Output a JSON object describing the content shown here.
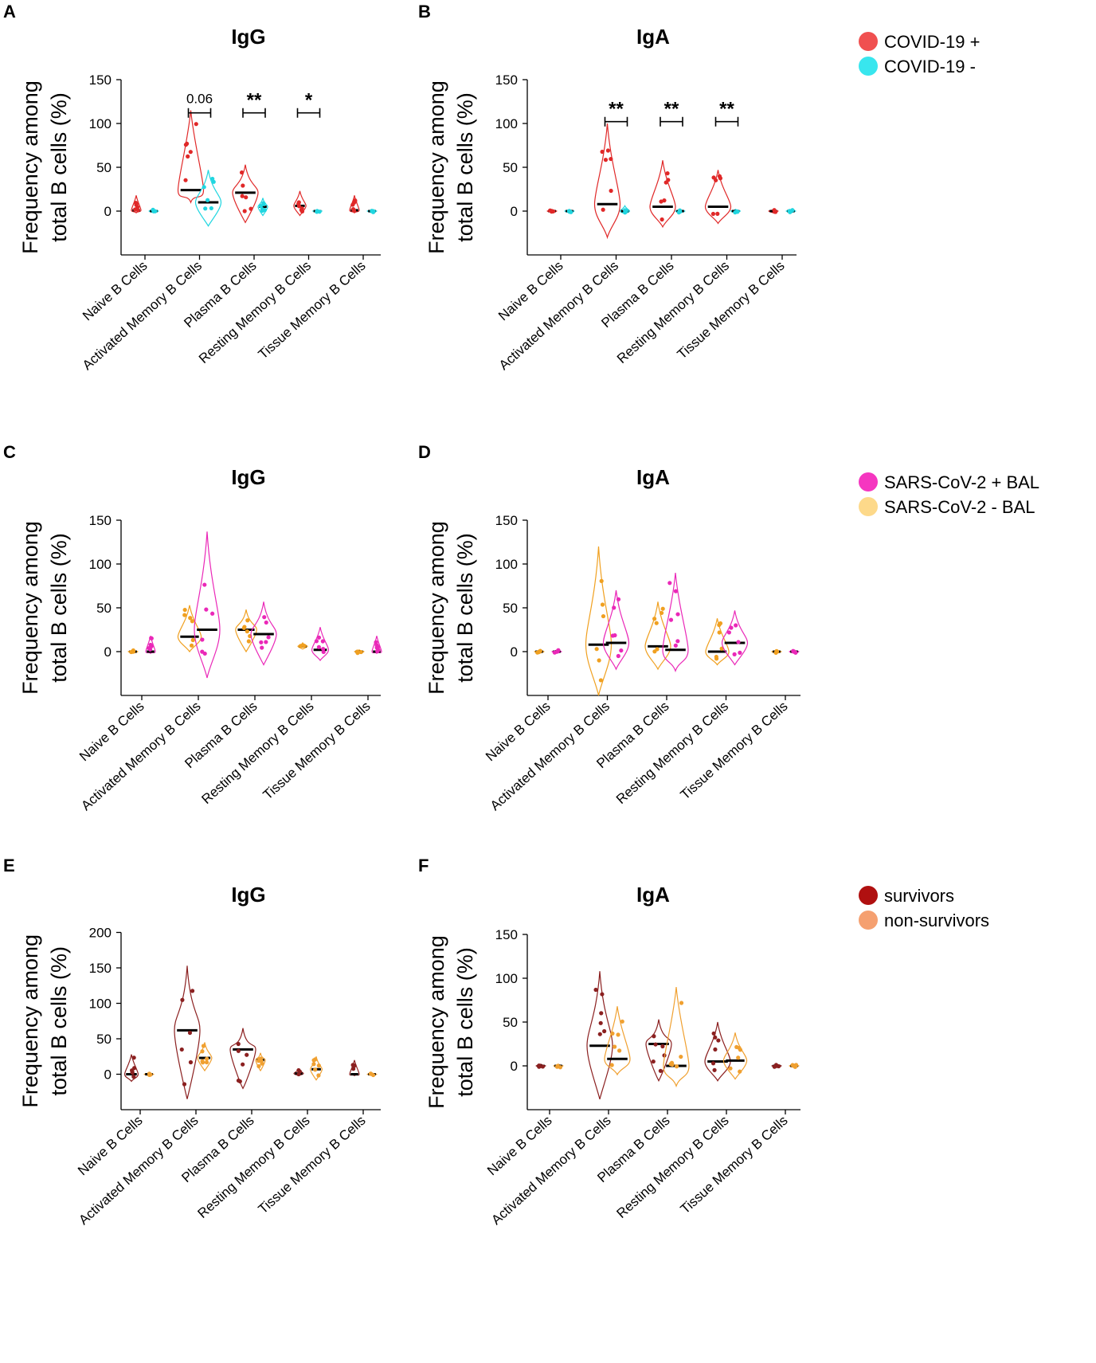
{
  "figure": {
    "categories": [
      "Naive B Cells",
      "Activated Memory B Cells",
      "Plasma B Cells",
      "Resting Memory B Cells",
      "Tissue  Memory B Cells"
    ],
    "ylabel_line1": "Frequency among",
    "ylabel_line2": "total B cells (%)"
  },
  "legends": [
    {
      "row": 0,
      "items": [
        {
          "label": "COVID-19 +",
          "color": "#f05050"
        },
        {
          "label": "COVID-19 -",
          "color": "#38e6ee"
        }
      ]
    },
    {
      "row": 1,
      "items": [
        {
          "label": "SARS-CoV-2 + BAL",
          "color": "#f536c0"
        },
        {
          "label": "SARS-CoV-2 - BAL",
          "color": "#fdd98a"
        }
      ]
    },
    {
      "row": 2,
      "items": [
        {
          "label": "survivors",
          "color": "#b01010"
        },
        {
          "label": "non-survivors",
          "color": "#f5a070"
        }
      ]
    }
  ],
  "chart_data": [
    {
      "panel": "A",
      "title": "IgG",
      "type": "violin",
      "ylim": [
        -50,
        150
      ],
      "yticks": [
        0,
        50,
        100,
        150
      ],
      "categories": [
        "Naive B Cells",
        "Activated Memory B Cells",
        "Plasma B Cells",
        "Resting Memory B Cells",
        "Tissue  Memory B Cells"
      ],
      "series": [
        {
          "name": "COVID-19 +",
          "color": "#e02828",
          "medians": [
            1,
            24,
            21,
            6,
            1
          ],
          "ranges": [
            [
              -2,
              18
            ],
            [
              10,
              115
            ],
            [
              -13,
              53
            ],
            [
              -5,
              23
            ],
            [
              -2,
              18
            ]
          ]
        },
        {
          "name": "COVID-19 -",
          "color": "#20d6e0",
          "medians": [
            0,
            10,
            5,
            0,
            0
          ],
          "ranges": [
            [
              -2,
              2
            ],
            [
              -17,
              47
            ],
            [
              -5,
              15
            ],
            [
              -1,
              1
            ],
            [
              -2,
              2
            ]
          ]
        }
      ],
      "annotations": [
        {
          "text": "0.06",
          "category": 1,
          "y": 143
        },
        {
          "text": "**",
          "category": 2,
          "y": 143
        },
        {
          "text": "*",
          "category": 3,
          "y": 143
        }
      ]
    },
    {
      "panel": "B",
      "title": "IgA",
      "type": "violin",
      "ylim": [
        -50,
        150
      ],
      "yticks": [
        0,
        50,
        100,
        150
      ],
      "categories": [
        "Naive B Cells",
        "Activated Memory B Cells",
        "Plasma B Cells",
        "Resting Memory B Cells",
        "Tissue  Memory B Cells"
      ],
      "series": [
        {
          "name": "COVID-19 +",
          "color": "#e02828",
          "medians": [
            0,
            8,
            5,
            5,
            0
          ],
          "ranges": [
            [
              -2,
              2
            ],
            [
              -30,
              100
            ],
            [
              -18,
              58
            ],
            [
              -14,
              47
            ],
            [
              -2,
              2
            ]
          ]
        },
        {
          "name": "COVID-19 -",
          "color": "#20d6e0",
          "medians": [
            0,
            0,
            0,
            0,
            0
          ],
          "ranges": [
            [
              -2,
              2
            ],
            [
              -3,
              6
            ],
            [
              -2,
              2
            ],
            [
              -2,
              2
            ],
            [
              -2,
              2
            ]
          ]
        }
      ],
      "annotations": [
        {
          "text": "**",
          "category": 1,
          "y": 133
        },
        {
          "text": "**",
          "category": 2,
          "y": 133
        },
        {
          "text": "**",
          "category": 3,
          "y": 133
        }
      ]
    },
    {
      "panel": "C",
      "title": "IgG",
      "type": "violin",
      "ylim": [
        -50,
        150
      ],
      "yticks": [
        0,
        50,
        100,
        150
      ],
      "categories": [
        "Naive B Cells",
        "Activated Memory B Cells",
        "Plasma B Cells",
        "Resting Memory B Cells",
        "Tissue  Memory B Cells"
      ],
      "series": [
        {
          "name": "SARS-CoV-2 - BAL",
          "color": "#f0a020",
          "medians": [
            0,
            17,
            25,
            6,
            0
          ],
          "ranges": [
            [
              -2,
              2
            ],
            [
              0,
              53
            ],
            [
              0,
              48
            ],
            [
              3,
              10
            ],
            [
              -2,
              2
            ]
          ]
        },
        {
          "name": "SARS-CoV-2 + BAL",
          "color": "#ea28b8",
          "medians": [
            0,
            25,
            20,
            2,
            0
          ],
          "ranges": [
            [
              -2,
              18
            ],
            [
              -30,
              137
            ],
            [
              -15,
              57
            ],
            [
              -10,
              28
            ],
            [
              -2,
              18
            ]
          ]
        }
      ],
      "annotations": []
    },
    {
      "panel": "D",
      "title": "IgA",
      "type": "violin",
      "ylim": [
        -50,
        150
      ],
      "yticks": [
        0,
        50,
        100,
        150
      ],
      "categories": [
        "Naive B Cells",
        "Activated Memory B Cells",
        "Plasma B Cells",
        "Resting Memory B Cells",
        "Tissue  Memory B Cells"
      ],
      "series": [
        {
          "name": "SARS-CoV-2 - BAL",
          "color": "#f0a020",
          "medians": [
            0,
            8,
            6,
            0,
            0
          ],
          "ranges": [
            [
              -2,
              2
            ],
            [
              -50,
              120
            ],
            [
              -20,
              57
            ],
            [
              -15,
              38
            ],
            [
              -2,
              2
            ]
          ]
        },
        {
          "name": "SARS-CoV-2 + BAL",
          "color": "#ea28b8",
          "medians": [
            0,
            10,
            2,
            10,
            0
          ],
          "ranges": [
            [
              -2,
              2
            ],
            [
              -20,
              70
            ],
            [
              -22,
              90
            ],
            [
              -15,
              47
            ],
            [
              -2,
              2
            ]
          ]
        }
      ],
      "annotations": []
    },
    {
      "panel": "E",
      "title": "IgG",
      "type": "violin",
      "ylim": [
        -50,
        200
      ],
      "yticks": [
        0,
        50,
        100,
        150,
        200
      ],
      "categories": [
        "Naive B Cells",
        "Activated Memory B Cells",
        "Plasma B Cells",
        "Resting Memory B Cells",
        "Tissue  Memory B Cells"
      ],
      "series": [
        {
          "name": "survivors",
          "color": "#8b2020",
          "medians": [
            0,
            62,
            35,
            1,
            0
          ],
          "ranges": [
            [
              -10,
              28
            ],
            [
              -35,
              153
            ],
            [
              -20,
              65
            ],
            [
              -2,
              7
            ],
            [
              -2,
              20
            ]
          ]
        },
        {
          "name": "non-survivors",
          "color": "#f0a030",
          "medians": [
            0,
            23,
            20,
            7,
            0
          ],
          "ranges": [
            [
              -2,
              2
            ],
            [
              5,
              45
            ],
            [
              5,
              30
            ],
            [
              -8,
              25
            ],
            [
              -2,
              2
            ]
          ]
        }
      ],
      "annotations": []
    },
    {
      "panel": "F",
      "title": "IgA",
      "type": "violin",
      "ylim": [
        -50,
        150
      ],
      "yticks": [
        0,
        50,
        100,
        150
      ],
      "categories": [
        "Naive B Cells",
        "Activated Memory B Cells",
        "Plasma B Cells",
        "Resting Memory B Cells",
        "Tissue  Memory B Cells"
      ],
      "series": [
        {
          "name": "survivors",
          "color": "#8b2020",
          "medians": [
            0,
            23,
            25,
            5,
            0
          ],
          "ranges": [
            [
              -2,
              2
            ],
            [
              -38,
              108
            ],
            [
              -17,
              53
            ],
            [
              -17,
              50
            ],
            [
              -2,
              2
            ]
          ]
        },
        {
          "name": "non-survivors",
          "color": "#f0a030",
          "medians": [
            0,
            8,
            0,
            6,
            0
          ],
          "ranges": [
            [
              -2,
              2
            ],
            [
              -10,
              68
            ],
            [
              -23,
              90
            ],
            [
              -15,
              38
            ],
            [
              -2,
              2
            ]
          ]
        }
      ],
      "annotations": []
    }
  ]
}
